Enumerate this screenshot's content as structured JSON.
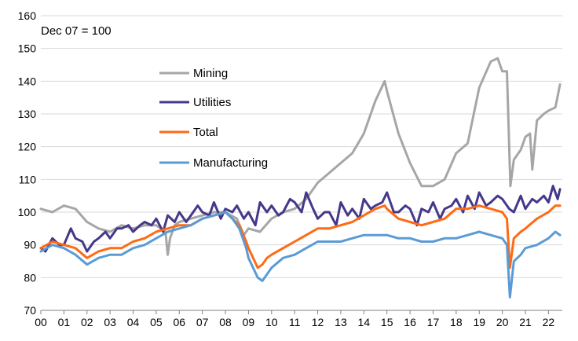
{
  "chart_data": {
    "type": "line",
    "annotation": "Dec 07 = 100",
    "y_ticks": [
      70,
      80,
      90,
      100,
      110,
      120,
      130,
      140,
      150,
      160
    ],
    "ylim": [
      70,
      160
    ],
    "x_tick_labels": [
      "00",
      "01",
      "02",
      "03",
      "04",
      "05",
      "06",
      "07",
      "08",
      "09",
      "10",
      "11",
      "12",
      "13",
      "14",
      "15",
      "16",
      "17",
      "18",
      "19",
      "20",
      "21",
      "22"
    ],
    "xlim": [
      2000.0,
      2022.6
    ],
    "grid": true,
    "legend_position": "upper-left-center",
    "series": [
      {
        "name": "Mining",
        "color": "#a6a6a6",
        "x": [
          2000.0,
          2000.5,
          2001.0,
          2001.5,
          2002.0,
          2002.5,
          2003.0,
          2003.5,
          2004.0,
          2004.5,
          2005.0,
          2005.4,
          2005.5,
          2005.6,
          2005.8,
          2006.0,
          2006.5,
          2007.0,
          2007.5,
          2008.0,
          2008.5,
          2008.8,
          2009.0,
          2009.5,
          2010.0,
          2010.5,
          2011.0,
          2011.5,
          2012.0,
          2012.5,
          2013.0,
          2013.5,
          2014.0,
          2014.5,
          2014.9,
          2015.0,
          2015.5,
          2016.0,
          2016.5,
          2017.0,
          2017.5,
          2018.0,
          2018.5,
          2019.0,
          2019.5,
          2019.8,
          2020.0,
          2020.2,
          2020.35,
          2020.5,
          2020.8,
          2021.0,
          2021.2,
          2021.3,
          2021.5,
          2021.8,
          2022.0,
          2022.3,
          2022.5
        ],
        "values": [
          101,
          100,
          102,
          101,
          97,
          95,
          94,
          96,
          95,
          96,
          96,
          94,
          87,
          92,
          96,
          97,
          98,
          99,
          100,
          100,
          98,
          93,
          95,
          94,
          98,
          100,
          101,
          104,
          109,
          112,
          115,
          118,
          124,
          134,
          140,
          137,
          124,
          115,
          108,
          108,
          110,
          118,
          121,
          138,
          146,
          147,
          143,
          143,
          108,
          116,
          119,
          123,
          124,
          113,
          128,
          130,
          131,
          132,
          139
        ]
      },
      {
        "name": "Utilities",
        "color": "#45388a",
        "x": [
          2000.0,
          2000.2,
          2000.5,
          2000.8,
          2001.0,
          2001.3,
          2001.5,
          2001.8,
          2002.0,
          2002.3,
          2002.5,
          2002.8,
          2003.0,
          2003.3,
          2003.5,
          2003.8,
          2004.0,
          2004.3,
          2004.5,
          2004.8,
          2005.0,
          2005.3,
          2005.5,
          2005.8,
          2006.0,
          2006.3,
          2006.5,
          2006.8,
          2007.0,
          2007.3,
          2007.5,
          2007.8,
          2008.0,
          2008.3,
          2008.5,
          2008.8,
          2009.0,
          2009.3,
          2009.5,
          2009.8,
          2010.0,
          2010.3,
          2010.5,
          2010.8,
          2011.0,
          2011.3,
          2011.5,
          2011.8,
          2012.0,
          2012.3,
          2012.5,
          2012.8,
          2013.0,
          2013.3,
          2013.5,
          2013.8,
          2014.0,
          2014.3,
          2014.5,
          2014.8,
          2015.0,
          2015.3,
          2015.5,
          2015.8,
          2016.0,
          2016.3,
          2016.5,
          2016.8,
          2017.0,
          2017.3,
          2017.5,
          2017.8,
          2018.0,
          2018.3,
          2018.5,
          2018.8,
          2019.0,
          2019.3,
          2019.5,
          2019.8,
          2020.0,
          2020.3,
          2020.5,
          2020.8,
          2021.0,
          2021.3,
          2021.5,
          2021.8,
          2022.0,
          2022.2,
          2022.4,
          2022.5
        ],
        "values": [
          89,
          88,
          92,
          90,
          90,
          95,
          92,
          91,
          88,
          91,
          92,
          94,
          92,
          95,
          95,
          96,
          94,
          96,
          97,
          96,
          98,
          94,
          99,
          97,
          100,
          97,
          99,
          102,
          100,
          99,
          103,
          98,
          101,
          100,
          102,
          98,
          100,
          96,
          103,
          100,
          102,
          99,
          100,
          104,
          103,
          100,
          106,
          101,
          98,
          100,
          100,
          96,
          103,
          99,
          101,
          98,
          104,
          101,
          102,
          103,
          106,
          100,
          100,
          102,
          101,
          96,
          101,
          100,
          103,
          98,
          101,
          102,
          104,
          100,
          105,
          101,
          106,
          102,
          103,
          105,
          104,
          101,
          100,
          105,
          101,
          104,
          103,
          105,
          103,
          108,
          104,
          107
        ]
      },
      {
        "name": "Total",
        "color": "#ff6a14",
        "x": [
          2000.0,
          2000.5,
          2001.0,
          2001.5,
          2002.0,
          2002.5,
          2003.0,
          2003.5,
          2004.0,
          2004.5,
          2005.0,
          2005.5,
          2006.0,
          2006.5,
          2007.0,
          2007.5,
          2008.0,
          2008.3,
          2008.6,
          2008.9,
          2009.0,
          2009.2,
          2009.4,
          2009.6,
          2009.8,
          2010.0,
          2010.5,
          2011.0,
          2011.5,
          2012.0,
          2012.5,
          2013.0,
          2013.5,
          2014.0,
          2014.5,
          2014.9,
          2015.0,
          2015.5,
          2016.0,
          2016.5,
          2017.0,
          2017.5,
          2018.0,
          2018.5,
          2019.0,
          2019.5,
          2020.0,
          2020.2,
          2020.33,
          2020.5,
          2020.8,
          2021.0,
          2021.5,
          2022.0,
          2022.3,
          2022.5
        ],
        "values": [
          89,
          91,
          90,
          89,
          86,
          88,
          89,
          89,
          91,
          92,
          94,
          95,
          96,
          96,
          98,
          99,
          100,
          98,
          96,
          91,
          89,
          86,
          83,
          84,
          86,
          87,
          89,
          91,
          93,
          95,
          95,
          96,
          97,
          99,
          101,
          102,
          101,
          98,
          97,
          96,
          97,
          98,
          101,
          101,
          102,
          101,
          100,
          98,
          83,
          92,
          94,
          95,
          98,
          100,
          102,
          102
        ]
      },
      {
        "name": "Manufacturing",
        "color": "#5b9bd5",
        "x": [
          2000.0,
          2000.5,
          2001.0,
          2001.5,
          2002.0,
          2002.5,
          2003.0,
          2003.5,
          2004.0,
          2004.5,
          2005.0,
          2005.5,
          2006.0,
          2006.5,
          2007.0,
          2007.5,
          2008.0,
          2008.3,
          2008.6,
          2008.9,
          2009.0,
          2009.2,
          2009.4,
          2009.6,
          2009.8,
          2010.0,
          2010.5,
          2011.0,
          2011.5,
          2012.0,
          2012.5,
          2013.0,
          2013.5,
          2014.0,
          2014.5,
          2015.0,
          2015.5,
          2016.0,
          2016.5,
          2017.0,
          2017.5,
          2018.0,
          2018.5,
          2019.0,
          2019.5,
          2020.0,
          2020.2,
          2020.33,
          2020.5,
          2020.8,
          2021.0,
          2021.5,
          2022.0,
          2022.3,
          2022.5
        ],
        "values": [
          88,
          90,
          89,
          87,
          84,
          86,
          87,
          87,
          89,
          90,
          92,
          94,
          95,
          96,
          98,
          99,
          100,
          98,
          95,
          89,
          86,
          83,
          80,
          79,
          81,
          83,
          86,
          87,
          89,
          91,
          91,
          91,
          92,
          93,
          93,
          93,
          92,
          92,
          91,
          91,
          92,
          92,
          93,
          94,
          93,
          92,
          90,
          74,
          85,
          87,
          89,
          90,
          92,
          94,
          93
        ]
      }
    ]
  }
}
